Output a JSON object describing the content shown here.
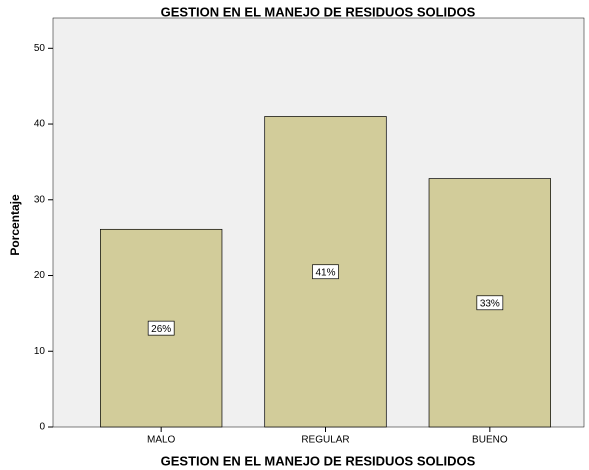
{
  "chart_data": {
    "type": "bar",
    "title": "GESTION EN EL MANEJO DE RESIDUOS SOLIDOS",
    "x_label": "GESTION EN EL MANEJO DE RESIDUOS SOLIDOS",
    "y_label": "Porcentaje",
    "categories": [
      "MALO",
      "REGULAR",
      "BUENO"
    ],
    "values": [
      26.1,
      41.0,
      32.8
    ],
    "value_labels": [
      "26%",
      "41%",
      "33%"
    ],
    "color": "#d2cc9a",
    "ylim": [
      0,
      54
    ],
    "yticks": [
      0,
      10,
      20,
      30,
      40,
      50
    ],
    "grid": false
  }
}
